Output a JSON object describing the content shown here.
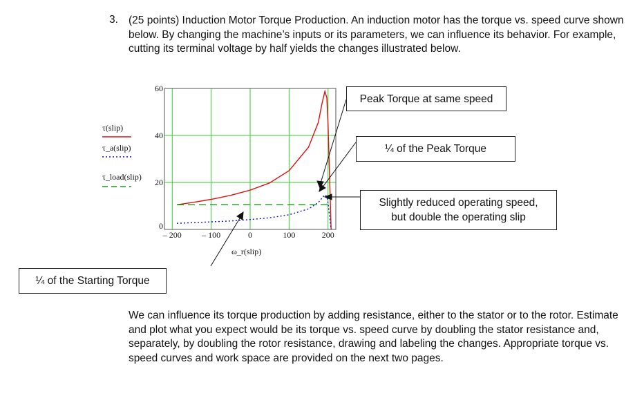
{
  "question": {
    "number": "3.",
    "intro": "(25 points) Induction Motor Torque Production. An induction motor has the torque vs. speed curve shown below. By changing the machine’s inputs or its parameters, we can influence its behavior. For example, cutting its terminal voltage by half yields the changes illustrated below.",
    "outro": "We can influence its torque production by adding resistance, either to the stator or to the rotor. Estimate and plot what you expect would be its torque vs. speed curve by doubling the stator resistance and, separately, by doubling the rotor resistance, drawing and labeling the changes. Appropriate torque vs. speed curves and work space are provided on the next two pages."
  },
  "callouts": {
    "peak_same_speed": "Peak Torque at same speed",
    "quarter_peak": "¼ of the Peak Torque",
    "reduced_speed_line1": "Slightly reduced operating speed,",
    "reduced_speed_line2": "but double the operating slip",
    "quarter_start": "¼ of the Starting Torque"
  },
  "chart_data": {
    "type": "line",
    "xlabel": "ω_r(slip)",
    "legend": [
      "τ(slip)",
      "τ_a(slip)",
      "τ_load(slip)"
    ],
    "xlim": [
      -220,
      220
    ],
    "ylim": [
      0,
      60
    ],
    "xticks": [
      "– 200",
      "– 100",
      "0",
      "100",
      "200"
    ],
    "yticks": [
      "0",
      "20",
      "40",
      "60"
    ],
    "grid": true,
    "colors": {
      "tau": "#e01010",
      "tau_a": "#1010d0",
      "tau_load": "#10a010",
      "grid": "#33cc33"
    },
    "series": [
      {
        "name": "τ(slip)",
        "x": [
          -188,
          -150,
          -100,
          -50,
          0,
          50,
          100,
          150,
          175,
          185,
          192,
          197,
          200,
          204,
          208
        ],
        "y": [
          10.5,
          11.4,
          12.8,
          14.5,
          16.7,
          19.8,
          25,
          35,
          45.5,
          54,
          58.8,
          56,
          45,
          22,
          0
        ]
      },
      {
        "name": "τ_a(slip)",
        "x": [
          -188,
          -150,
          -100,
          -50,
          0,
          50,
          100,
          150,
          175,
          185,
          192,
          197,
          200,
          204,
          208
        ],
        "y": [
          2.6,
          2.85,
          3.2,
          3.6,
          4.2,
          4.95,
          6.25,
          8.75,
          11.4,
          13.5,
          14.7,
          14,
          11.2,
          5.5,
          0
        ]
      },
      {
        "name": "τ_load(slip)",
        "x": [
          -188,
          210
        ],
        "y": [
          10.5,
          10.5
        ]
      }
    ]
  }
}
